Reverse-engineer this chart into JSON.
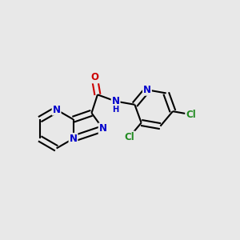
{
  "bg": "#e8e8e8",
  "bond_color": "#000000",
  "N_color": "#0000cc",
  "O_color": "#cc0000",
  "Cl_color": "#228B22",
  "lw": 1.5,
  "dbo": 0.12,
  "fs": 8.5,
  "figsize": [
    3.0,
    3.0
  ],
  "dpi": 100,
  "xlim": [
    0,
    10
  ],
  "ylim": [
    0,
    10
  ]
}
